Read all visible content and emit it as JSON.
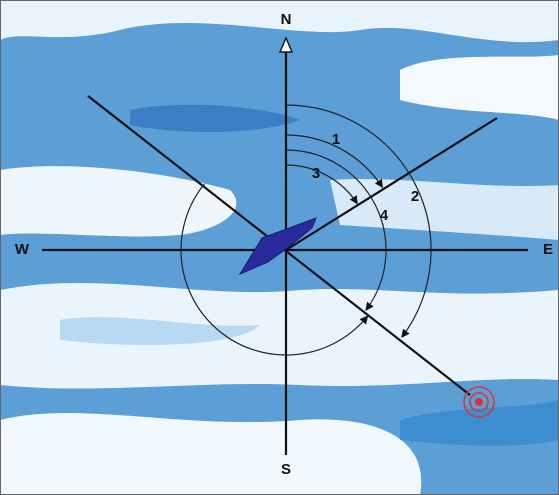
{
  "compass": {
    "north": "N",
    "south": "S",
    "west": "W",
    "east": "E"
  },
  "angles": [
    "1",
    "2",
    "3",
    "4"
  ]
}
